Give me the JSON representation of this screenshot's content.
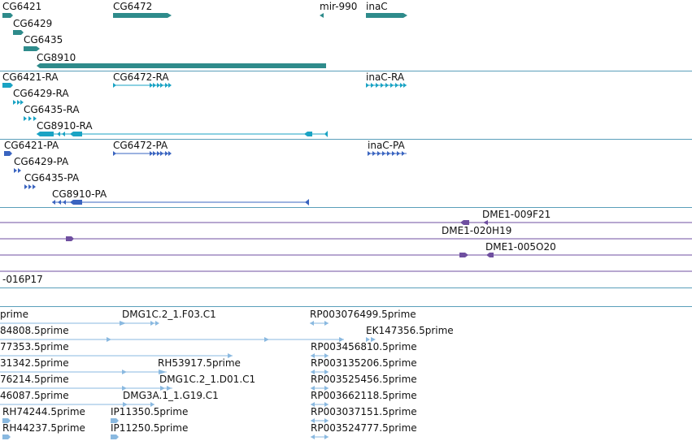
{
  "colors": {
    "gene": "#2e8b8b",
    "mrna": "#1aa3c4",
    "cds": "#3a64c0",
    "bac": "#6f4fa0",
    "est": "#8ab9e0",
    "separator": "#5a9fba"
  },
  "tracks": {
    "genes": {
      "features": [
        {
          "label": "CG6421"
        },
        {
          "label": "CG6472"
        },
        {
          "label": "mir-990"
        },
        {
          "label": "inaC"
        },
        {
          "label": "CG6429"
        },
        {
          "label": "CG6435"
        },
        {
          "label": "CG8910"
        }
      ]
    },
    "mrna": {
      "features": [
        {
          "label": "CG6421-RA"
        },
        {
          "label": "CG6472-RA"
        },
        {
          "label": "inaC-RA"
        },
        {
          "label": "CG6429-RA"
        },
        {
          "label": "CG6435-RA"
        },
        {
          "label": "CG8910-RA"
        }
      ]
    },
    "cds": {
      "features": [
        {
          "label": "CG6421-PA"
        },
        {
          "label": "CG6472-PA"
        },
        {
          "label": "inaC-PA"
        },
        {
          "label": "CG6429-PA"
        },
        {
          "label": "CG6435-PA"
        },
        {
          "label": "CG8910-PA"
        }
      ]
    },
    "bac": {
      "features": [
        {
          "label": "DME1-009F21"
        },
        {
          "label": "DME1-020H19"
        },
        {
          "label": "DME1-005O20"
        },
        {
          "label": "-016P17"
        }
      ]
    },
    "est": {
      "features": [
        {
          "label": "prime"
        },
        {
          "label": "DMG1C.2_1.F03.C1"
        },
        {
          "label": "RP003076499.5prime"
        },
        {
          "label": "84808.5prime"
        },
        {
          "label": "EK147356.5prime"
        },
        {
          "label": "77353.5prime"
        },
        {
          "label": "RP003456810.5prime"
        },
        {
          "label": "31342.5prime"
        },
        {
          "label": "RH53917.5prime"
        },
        {
          "label": "RP003135206.5prime"
        },
        {
          "label": "76214.5prime"
        },
        {
          "label": "DMG1C.2_1.D01.C1"
        },
        {
          "label": "RP003525456.5prime"
        },
        {
          "label": "46087.5prime"
        },
        {
          "label": "DMG3A.1_1.G19.C1"
        },
        {
          "label": "RP003662118.5prime"
        },
        {
          "label": "RH74244.5prime"
        },
        {
          "label": "IP11350.5prime"
        },
        {
          "label": "RP003037151.5prime"
        },
        {
          "label": "RH44237.5prime"
        },
        {
          "label": "IP11250.5prime"
        },
        {
          "label": "RP003524777.5prime"
        }
      ]
    }
  }
}
